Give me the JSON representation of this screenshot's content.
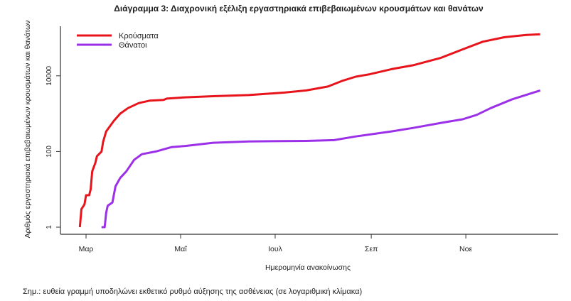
{
  "chart_data": {
    "type": "line",
    "title": "Διάγραμμα 3: Διαχρονική εξέλιξη εργαστηριακά επιβεβαιωμένων κρουσμάτων και θανάτων",
    "xlabel": "Ημερομηνία ανακοίνωσης",
    "ylabel": "Αριθμός εργαστηριακά επιβεβαιωμένων κρουσμάτων και θανάτων",
    "x_unit": "days since 1 Mar",
    "y_scale": "log10",
    "ylim": [
      1,
      160000
    ],
    "xlim": [
      -17,
      304
    ],
    "grid": false,
    "legend_position": "top-left",
    "x_ticks": [
      {
        "label": "Μαρ",
        "value": 0
      },
      {
        "label": "Μαΐ",
        "value": 61
      },
      {
        "label": "Ιουλ",
        "value": 122
      },
      {
        "label": "Σεπ",
        "value": 184
      },
      {
        "label": "Νοε",
        "value": 245
      }
    ],
    "y_ticks": [
      {
        "label": "1",
        "value": 1
      },
      {
        "label": "100",
        "value": 100
      },
      {
        "label": "10000",
        "value": 10000
      }
    ],
    "series": [
      {
        "name": "Κρούσματα",
        "color": "#e8141b",
        "x": [
          -4,
          -3,
          -1,
          0,
          2,
          3,
          4,
          6,
          7,
          10,
          11,
          13,
          18,
          22,
          27,
          34,
          41,
          50,
          52,
          64,
          82,
          105,
          128,
          142,
          156,
          165,
          174,
          183,
          197,
          211,
          229,
          243,
          256,
          270,
          284,
          293
        ],
        "y": [
          1,
          3,
          4,
          7,
          7,
          10,
          30,
          50,
          75,
          100,
          180,
          340,
          650,
          1000,
          1400,
          1900,
          2200,
          2300,
          2500,
          2700,
          2900,
          3100,
          3600,
          4100,
          5200,
          7300,
          9500,
          11000,
          15000,
          19000,
          30000,
          50000,
          80000,
          105000,
          120000,
          126000
        ]
      },
      {
        "name": "Θάνατοι",
        "color": "#9b30e8",
        "x": [
          10,
          12,
          13,
          14,
          17,
          19,
          22,
          26,
          31,
          36,
          45,
          55,
          64,
          82,
          105,
          142,
          160,
          174,
          197,
          211,
          229,
          243,
          252,
          261,
          275,
          293
        ],
        "y": [
          1,
          1,
          2.4,
          3.7,
          4.5,
          12,
          20,
          30,
          60,
          85,
          100,
          130,
          140,
          170,
          185,
          190,
          200,
          250,
          340,
          420,
          570,
          710,
          930,
          1400,
          2400,
          4100
        ]
      }
    ]
  },
  "note": "Σημ.: ευθεία γραμμή υποδηλώνει εκθετικό ρυθμό αύξησης της ασθένειας (σε λογαριθμική κλίμακα)"
}
